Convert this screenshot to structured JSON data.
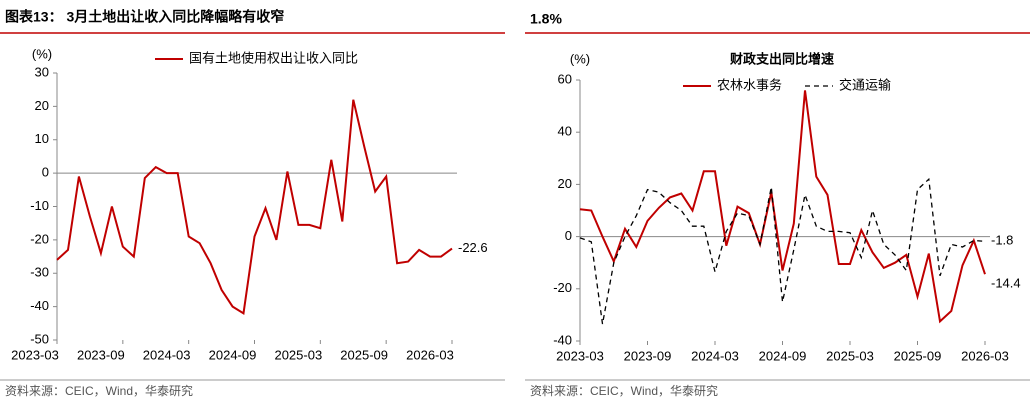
{
  "header": {
    "left_title": "图表13： 3月土地出让收入同比降幅略有收窄",
    "right_title": "1.8%"
  },
  "chart_data": [
    {
      "type": "line",
      "y_label": "(%)",
      "categories": [
        "2023-03",
        null,
        null,
        null,
        null,
        null,
        "2023-09",
        null,
        null,
        null,
        null,
        null,
        "2024-03",
        null,
        null,
        null,
        null,
        null,
        "2024-09",
        null,
        null,
        null,
        null,
        null,
        "2025-03",
        null,
        null,
        null,
        null,
        null,
        "2025-09",
        null,
        null,
        null,
        null,
        null,
        "2026-03"
      ],
      "series": [
        {
          "name": "国有土地使用权出让收入同比",
          "color": "#c00000",
          "line_style": "solid",
          "values": [
            -26,
            -23,
            -1,
            -13,
            -24,
            -10,
            -22,
            -25,
            -1.5,
            1.8,
            0,
            0,
            -19,
            -21,
            -27,
            -35,
            -40,
            -42,
            -19,
            -10.5,
            -20,
            0.5,
            -15.5,
            -15.5,
            -16.5,
            4,
            -14.5,
            22,
            8,
            -5.5,
            -1,
            -27,
            -26.5,
            -23,
            -25,
            -25,
            -22.6
          ],
          "value_labels": [
            null,
            null,
            null,
            null,
            null,
            null,
            null,
            null,
            null,
            null,
            null,
            null,
            null,
            null,
            null,
            null,
            null,
            null,
            null,
            null,
            null,
            null,
            null,
            null,
            null,
            null,
            null,
            null,
            null,
            null,
            null,
            null,
            null,
            null,
            null,
            null,
            "-22.6"
          ]
        }
      ],
      "ylim": [
        -50,
        30
      ],
      "yticks": [
        -50,
        -40,
        -30,
        -20,
        -10,
        0,
        10,
        20,
        30
      ]
    },
    {
      "type": "line",
      "title": "财政支出同比增速",
      "y_label": "(%)",
      "categories": [
        "2023-03",
        null,
        null,
        null,
        null,
        null,
        "2023-09",
        null,
        null,
        null,
        null,
        null,
        "2024-03",
        null,
        null,
        null,
        null,
        null,
        "2024-09",
        null,
        null,
        null,
        null,
        null,
        "2025-03",
        null,
        null,
        null,
        null,
        null,
        "2025-09",
        null,
        null,
        null,
        null,
        null,
        "2026-03"
      ],
      "series": [
        {
          "name": "农林水事务",
          "color": "#c00000",
          "line_style": "solid",
          "values": [
            10.5,
            10,
            0,
            -9.5,
            3,
            -4,
            6,
            11,
            15,
            16.5,
            10,
            25,
            25,
            -3.5,
            11.5,
            9,
            -3,
            17,
            -13,
            5,
            56,
            23,
            16,
            -10.5,
            -10.5,
            2.5,
            -6,
            -12,
            -10,
            -7,
            -23,
            -6.5,
            -32.5,
            -28.5,
            -11,
            -1.5,
            -14.4
          ],
          "value_labels": [
            null,
            null,
            null,
            null,
            null,
            null,
            null,
            null,
            null,
            null,
            null,
            null,
            null,
            null,
            null,
            null,
            null,
            null,
            null,
            null,
            null,
            null,
            null,
            null,
            null,
            null,
            null,
            null,
            null,
            null,
            null,
            null,
            null,
            null,
            null,
            null,
            "-14.4"
          ]
        },
        {
          "name": "交通运输",
          "color": "#000000",
          "line_style": "dashed",
          "values": [
            -0.5,
            -2,
            -33.5,
            -10,
            0,
            8,
            18,
            17,
            13,
            10,
            4,
            4,
            -13.5,
            2,
            9,
            8,
            -3,
            19,
            -25,
            -5,
            16,
            4,
            2,
            2,
            1.5,
            -8,
            10,
            -3,
            -7,
            -13,
            18,
            22,
            -15,
            -3,
            -4,
            -1.5,
            -1.8
          ],
          "value_labels": [
            null,
            null,
            null,
            null,
            null,
            null,
            null,
            null,
            null,
            null,
            null,
            null,
            null,
            null,
            null,
            null,
            null,
            null,
            null,
            null,
            null,
            null,
            null,
            null,
            null,
            null,
            null,
            null,
            null,
            null,
            null,
            null,
            null,
            null,
            null,
            null,
            "-1.8"
          ]
        }
      ],
      "ylim": [
        -40,
        60
      ],
      "yticks": [
        -40,
        -20,
        0,
        20,
        40,
        60
      ]
    }
  ],
  "footer": {
    "left_source": "资料来源：CEIC，Wind，华泰研究",
    "right_source": "资料来源：CEIC，Wind，华泰研究"
  }
}
